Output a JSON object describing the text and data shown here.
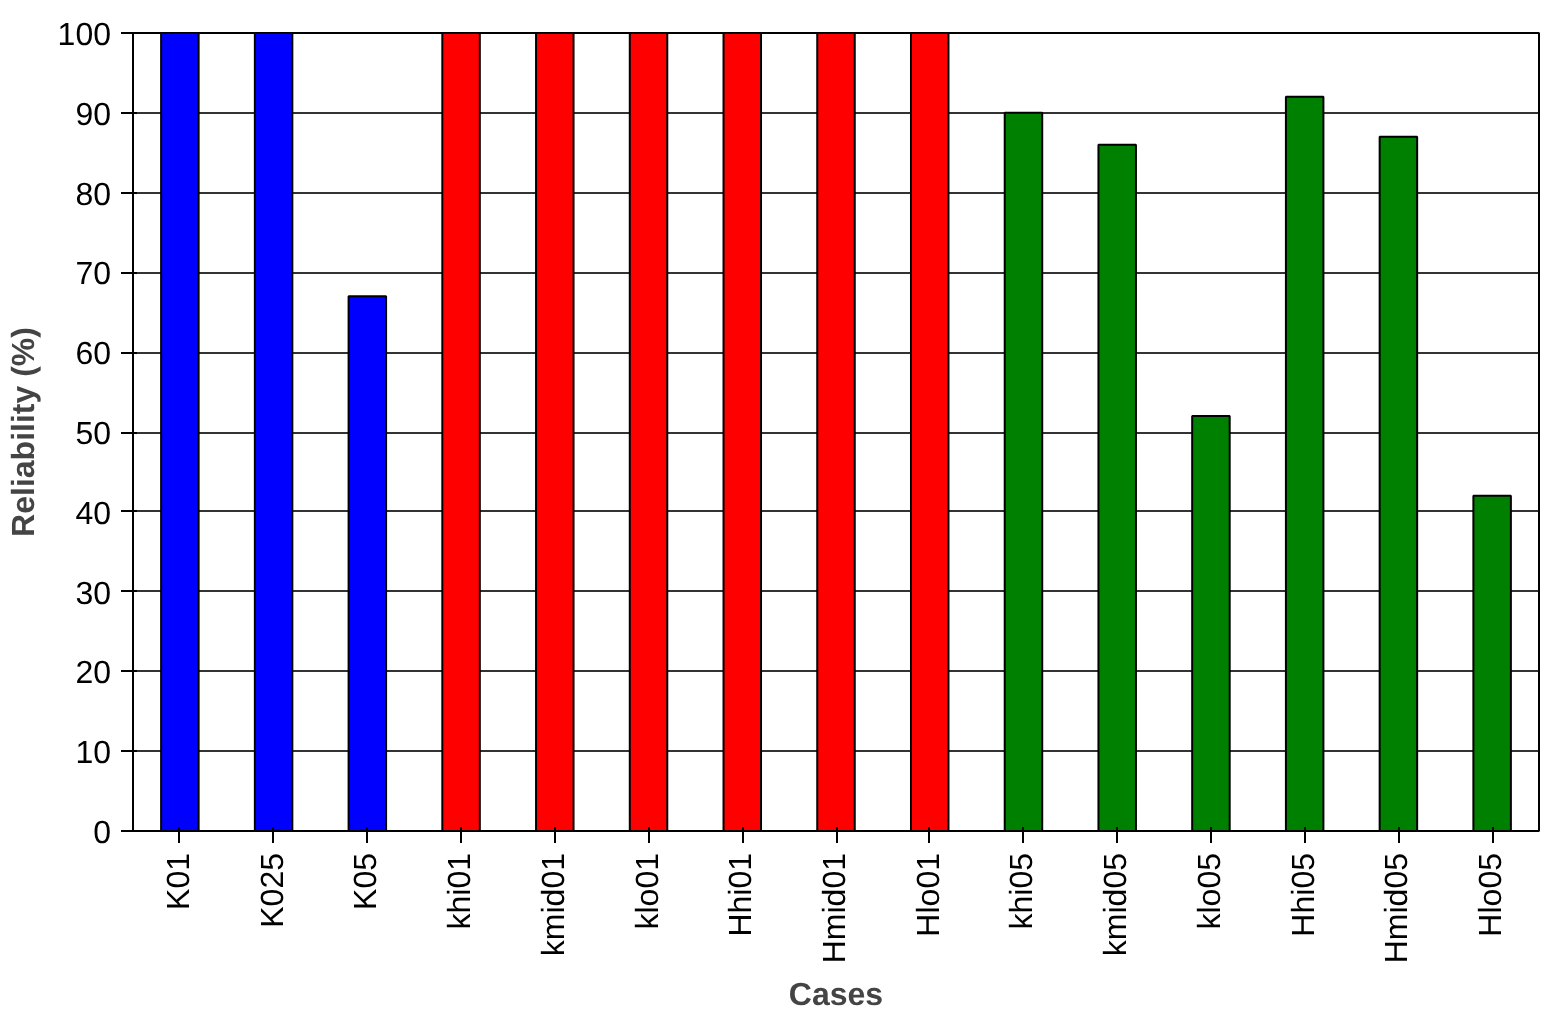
{
  "chart_data": {
    "type": "bar",
    "xlabel": "Cases",
    "ylabel": "Reliability (%)",
    "categories": [
      "K01",
      "K025",
      "K05",
      "khi01",
      "kmid01",
      "klo01",
      "Hhi01",
      "Hmid01",
      "Hlo01",
      "khi05",
      "kmid05",
      "klo05",
      "Hhi05",
      "Hmid05",
      "Hlo05"
    ],
    "values": [
      100,
      100,
      67,
      100,
      100,
      100,
      100,
      100,
      100,
      90,
      86,
      52,
      92,
      87,
      42
    ],
    "colors": [
      "#0000ff",
      "#0000ff",
      "#0000ff",
      "#ff0000",
      "#ff0000",
      "#ff0000",
      "#ff0000",
      "#ff0000",
      "#ff0000",
      "#008000",
      "#008000",
      "#008000",
      "#008000",
      "#008000",
      "#008000"
    ],
    "ylim": [
      0,
      100
    ],
    "yticks": [
      0,
      10,
      20,
      30,
      40,
      50,
      60,
      70,
      80,
      90,
      100
    ],
    "grid": "y"
  }
}
